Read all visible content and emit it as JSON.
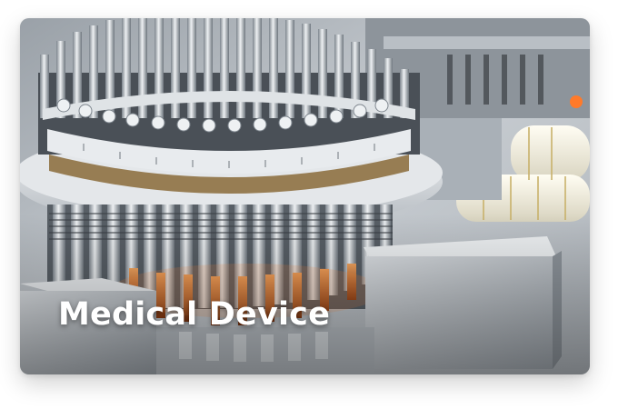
{
  "card": {
    "title": "Medical Device",
    "image_subject": "pharmaceutical-vial-filling-machine-image"
  },
  "colors": {
    "title_text": "#ffffff",
    "steel": "#c9ced3",
    "amber_glass": "#d7742f"
  }
}
